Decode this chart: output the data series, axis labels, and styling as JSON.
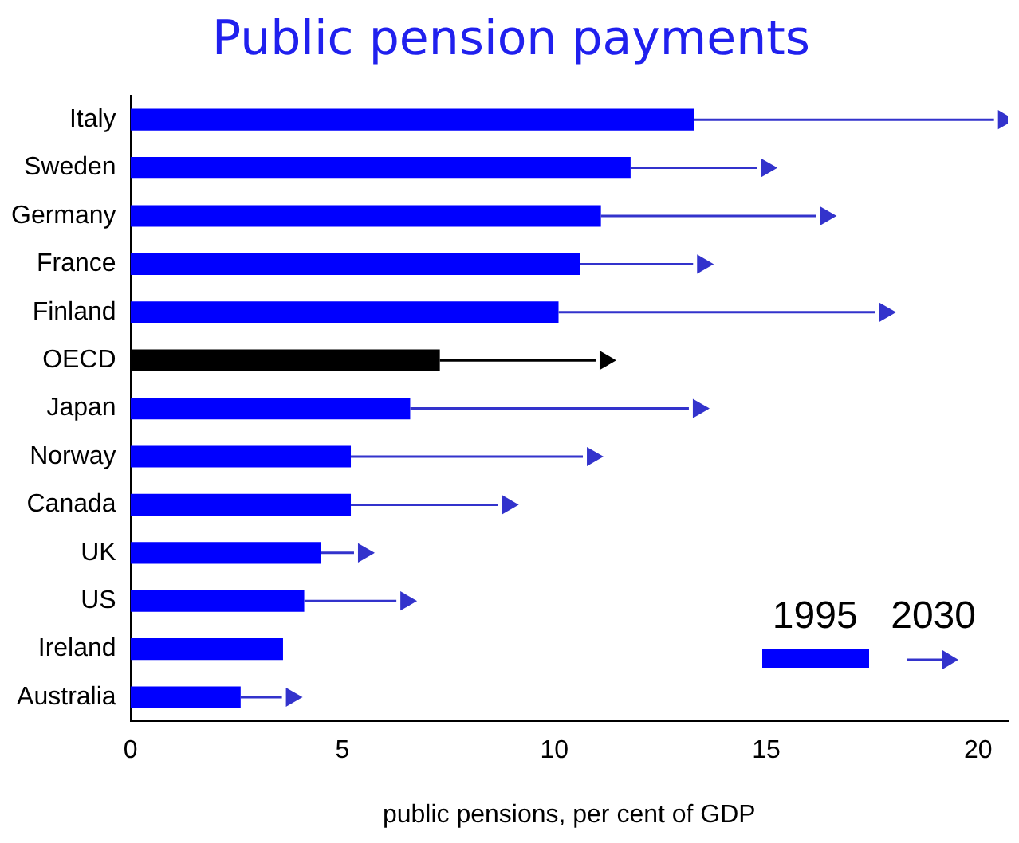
{
  "chart_data": {
    "type": "bar",
    "orientation": "horizontal",
    "title": "Public pension payments",
    "xlabel": "public pensions, per cent of GDP",
    "categories": [
      "Italy",
      "Sweden",
      "Germany",
      "France",
      "Finland",
      "OECD",
      "Japan",
      "Norway",
      "Canada",
      "UK",
      "US",
      "Ireland",
      "Australia"
    ],
    "series": [
      {
        "name": "1995",
        "color": "#0000ff",
        "colors": [
          "#0000ff",
          "#0000ff",
          "#0000ff",
          "#0000ff",
          "#0000ff",
          "#000000",
          "#0000ff",
          "#0000ff",
          "#0000ff",
          "#0000ff",
          "#0000ff",
          "#0000ff",
          "#0000ff"
        ],
        "values": [
          13.3,
          11.8,
          11.1,
          10.6,
          10.1,
          7.3,
          6.6,
          5.2,
          5.2,
          4.5,
          4.1,
          3.6,
          2.6
        ]
      },
      {
        "name": "2030",
        "type": "scatter",
        "marker": "triangle",
        "color": "#3333cc",
        "colors": [
          "#3333cc",
          "#3333cc",
          "#3333cc",
          "#3333cc",
          "#3333cc",
          "#000000",
          "#3333cc",
          "#3333cc",
          "#3333cc",
          "#3333cc",
          "#3333cc",
          "#3333cc",
          "#3333cc"
        ],
        "values": [
          20.6,
          15.0,
          16.4,
          13.5,
          17.8,
          11.2,
          13.4,
          10.9,
          8.9,
          5.5,
          6.5,
          null,
          3.8
        ]
      }
    ],
    "xlim": [
      0,
      20.7
    ],
    "xticks": [
      0,
      5,
      10,
      15,
      20
    ],
    "grid": false,
    "legend": "bottom right"
  }
}
